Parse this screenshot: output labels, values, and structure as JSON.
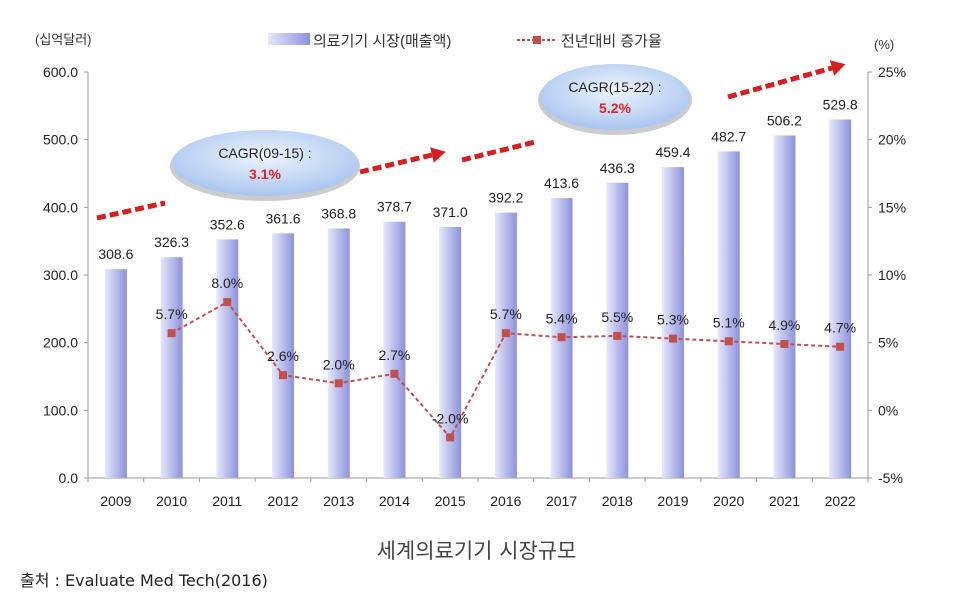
{
  "chart_data": {
    "type": "bar+line",
    "categories": [
      "2009",
      "2010",
      "2011",
      "2012",
      "2013",
      "2014",
      "2015",
      "2016",
      "2017",
      "2018",
      "2019",
      "2020",
      "2021",
      "2022"
    ],
    "series": [
      {
        "name": "의료기기 시장(매출액)",
        "type": "bar",
        "axis": "left",
        "values": [
          308.6,
          326.3,
          352.6,
          361.6,
          368.8,
          378.7,
          371.0,
          392.2,
          413.6,
          436.3,
          459.4,
          482.7,
          506.2,
          529.8
        ],
        "labels": [
          "308.6",
          "326.3",
          "352.6",
          "361.6",
          "368.8",
          "378.7",
          "371.0",
          "392.2",
          "413.6",
          "436.3",
          "459.4",
          "482.7",
          "506.2",
          "529.8"
        ],
        "color": "#9fa4e6"
      },
      {
        "name": "전년대비 증가율",
        "type": "line",
        "axis": "right",
        "values": [
          null,
          5.7,
          8.0,
          2.6,
          2.0,
          2.7,
          -2.0,
          5.7,
          5.4,
          5.5,
          5.3,
          5.1,
          4.9,
          4.7
        ],
        "labels": [
          "",
          "5.7%",
          "8.0%",
          "2.6%",
          "2.0%",
          "2.7%",
          "-2.0%",
          "5.7%",
          "5.4%",
          "5.5%",
          "5.3%",
          "5.1%",
          "4.9%",
          "4.7%"
        ],
        "color": "#c0504d"
      }
    ],
    "left_axis": {
      "label": "(십억달러)",
      "ylim": [
        0,
        600
      ],
      "ticks": [
        "0.0",
        "100.0",
        "200.0",
        "300.0",
        "400.0",
        "500.0",
        "600.0"
      ]
    },
    "right_axis": {
      "label": "(%)",
      "ylim": [
        -5,
        25
      ],
      "ticks": [
        "-5%",
        "0%",
        "5%",
        "10%",
        "15%",
        "20%",
        "25%"
      ]
    },
    "legend": {
      "placement": "top"
    },
    "annotations": [
      {
        "title": "CAGR(09-15) :",
        "value": "3.1%"
      },
      {
        "title": "CAGR(15-22) :",
        "value": "5.2%"
      }
    ],
    "trend_color": "#d42020",
    "grid": false
  },
  "caption": "세계의료기기  시장규모",
  "source": "출처 : Evaluate Med Tech(2016)"
}
